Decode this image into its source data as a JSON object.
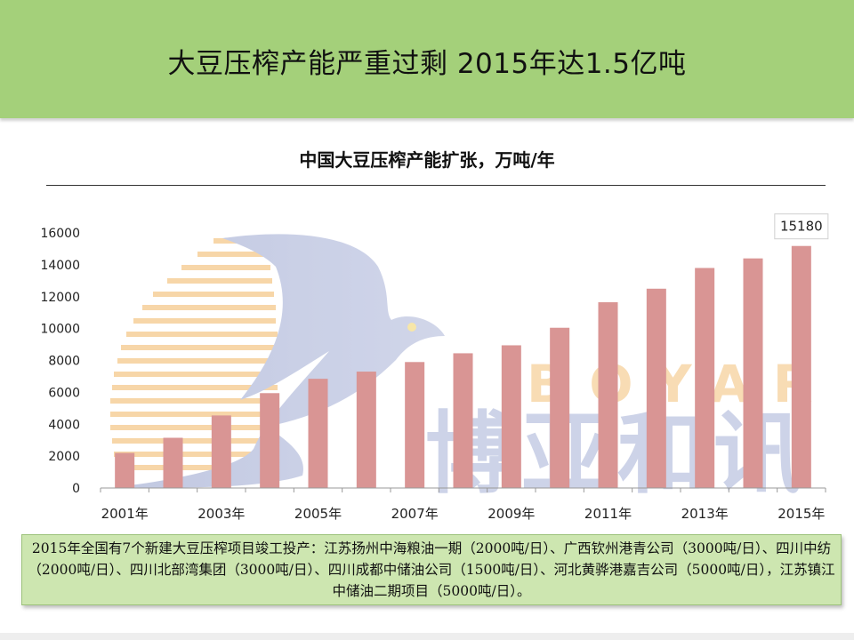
{
  "header": {
    "title": "大豆压榨产能严重过剩  2015年达1.5亿吨",
    "color": "#a4d07a"
  },
  "chart_data": {
    "type": "bar",
    "title": "中国大豆压榨产能扩张，万吨/年",
    "x": [
      2001,
      2002,
      2003,
      2004,
      2005,
      2006,
      2007,
      2008,
      2009,
      2010,
      2011,
      2012,
      2013,
      2014,
      2015
    ],
    "x_tick_labels": [
      "2001年",
      "2003年",
      "2005年",
      "2007年",
      "2009年",
      "2011年",
      "2013年",
      "2015年"
    ],
    "values": [
      2200,
      3150,
      4550,
      5950,
      6850,
      7300,
      7900,
      8450,
      8950,
      10050,
      11650,
      12500,
      13800,
      14400,
      15180
    ],
    "ylim": [
      0,
      16000
    ],
    "y_ticks": [
      0,
      2000,
      4000,
      6000,
      8000,
      10000,
      12000,
      14000,
      16000
    ],
    "data_labels": [
      {
        "index": 14,
        "text": "15180"
      }
    ],
    "bar_color": "#d99594",
    "grid": false,
    "legend": "none",
    "watermark": {
      "text": "BOYAR",
      "chinese": "博亚和讯"
    }
  },
  "note": {
    "text": "2015年全国有7个新建大豆压榨项目竣工投产：江苏扬州中海粮油一期（2000吨/日）、广西钦州港青公司（3000吨/日）、四川中纺（2000吨/日）、四川北部湾集团（3000吨/日）、四川成都中储油公司（1500吨/日）、河北黄骅港嘉吉公司（5000吨/日），江苏镇江中储油二期项目（5000吨/日）。",
    "background": "#cde6b0"
  }
}
